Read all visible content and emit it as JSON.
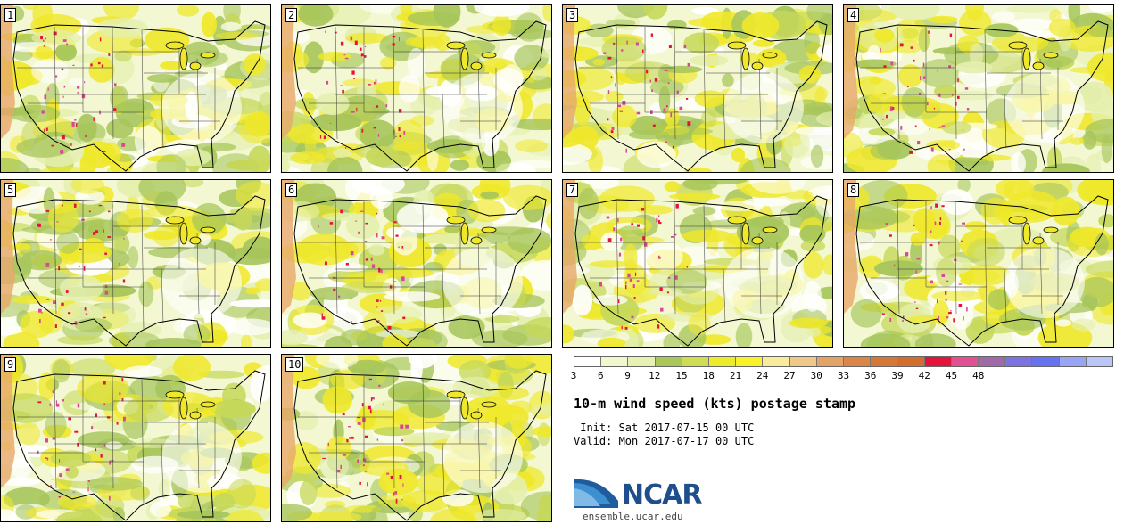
{
  "product_title": "10-m wind speed (kts) postage stamp",
  "init_line": " Init: Sat 2017-07-15 00 UTC",
  "valid_line": "Valid: Mon 2017-07-17 00 UTC",
  "logo": {
    "name": "NCAR",
    "url": "ensemble.ucar.edu"
  },
  "members": [
    "1",
    "2",
    "3",
    "4",
    "5",
    "6",
    "7",
    "8",
    "9",
    "10"
  ],
  "colorbar": {
    "colors": [
      "#ffffff",
      "#f1f8d0",
      "#e6f1b2",
      "#a9c75a",
      "#cfdd55",
      "#ecec2a",
      "#f7f229",
      "#f8ec9c",
      "#eec98a",
      "#e3a266",
      "#da8647",
      "#d47838",
      "#d36d2e",
      "#e3143c",
      "#e25094",
      "#a06aa8",
      "#7d73e0",
      "#6573f0",
      "#98a4f4",
      "#b9c6f6"
    ],
    "tick_labels": [
      "3",
      "6",
      "9",
      "12",
      "15",
      "18",
      "21",
      "24",
      "27",
      "30",
      "33",
      "36",
      "39",
      "42",
      "45",
      "48"
    ]
  },
  "map_colors": {
    "light": "#f3f8d2",
    "pale": "#e4efae",
    "green": "#a6c55b",
    "olive": "#c6d85a",
    "yellow": "#efe82a",
    "white": "#ffffff",
    "orange": "#e7a86a",
    "red": "#e3143c",
    "magenta": "#d84894",
    "water_coast": "#000000"
  }
}
